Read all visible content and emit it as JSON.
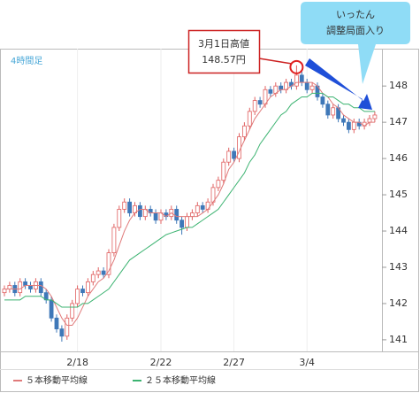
{
  "chart_data": {
    "type": "candlestick",
    "timeframe": "4時間足",
    "high_note": [
      "3月1日高値",
      "148.57円"
    ],
    "callout": [
      "いったん",
      "調整局面入り"
    ],
    "categories": [
      null,
      null,
      null,
      null,
      null,
      null,
      null,
      null,
      null,
      null,
      null,
      null,
      null,
      null,
      "2/18",
      null,
      null,
      null,
      null,
      null,
      null,
      null,
      null,
      null,
      null,
      null,
      null,
      null,
      null,
      null,
      "2/22",
      null,
      null,
      null,
      null,
      null,
      null,
      null,
      null,
      null,
      null,
      null,
      null,
      null,
      "2/27",
      null,
      null,
      null,
      null,
      null,
      null,
      null,
      null,
      null,
      null,
      null,
      null,
      null,
      "3/4",
      null,
      null,
      null,
      null,
      null,
      null,
      null,
      null,
      null,
      null,
      null,
      null,
      null
    ],
    "open": [
      142.3,
      142.4,
      142.5,
      142.3,
      142.6,
      142.5,
      142.4,
      142.6,
      142.3,
      142.1,
      141.6,
      141.3,
      141.1,
      141.6,
      142.0,
      142.4,
      142.3,
      142.6,
      142.8,
      142.9,
      142.8,
      143.4,
      144.1,
      144.6,
      144.8,
      144.5,
      144.7,
      144.4,
      144.6,
      144.5,
      144.3,
      144.5,
      144.4,
      144.6,
      144.3,
      144.1,
      144.4,
      144.5,
      144.7,
      144.6,
      144.8,
      145.2,
      145.4,
      145.9,
      146.2,
      146.0,
      146.6,
      146.9,
      147.3,
      147.6,
      147.5,
      147.9,
      147.8,
      148.0,
      147.9,
      148.1,
      148.0,
      148.3,
      148.1,
      147.9,
      148.0,
      147.7,
      147.5,
      147.2,
      147.4,
      147.1,
      147.0,
      146.8,
      147.0,
      146.9,
      147.0,
      147.1
    ],
    "high": [
      142.5,
      142.6,
      142.6,
      142.7,
      142.7,
      142.6,
      142.7,
      142.7,
      142.4,
      142.2,
      141.7,
      141.4,
      141.7,
      142.1,
      142.5,
      142.5,
      142.7,
      142.9,
      143.0,
      143.0,
      143.5,
      144.2,
      144.7,
      144.9,
      144.9,
      144.8,
      144.8,
      144.7,
      144.7,
      144.6,
      144.6,
      144.6,
      144.7,
      144.7,
      144.4,
      144.5,
      144.6,
      144.8,
      144.8,
      144.9,
      145.3,
      145.5,
      146.0,
      146.3,
      146.3,
      146.7,
      147.0,
      147.4,
      147.7,
      147.7,
      148.0,
      148.0,
      148.1,
      148.1,
      148.2,
      148.2,
      148.57,
      148.4,
      148.2,
      148.1,
      148.1,
      147.8,
      147.6,
      147.5,
      147.5,
      147.2,
      147.1,
      147.1,
      147.1,
      147.1,
      147.2,
      147.3
    ],
    "low": [
      142.2,
      142.3,
      142.2,
      142.2,
      142.4,
      142.3,
      142.3,
      142.2,
      142.0,
      141.5,
      141.2,
      140.95,
      141.0,
      141.5,
      141.9,
      142.2,
      142.2,
      142.5,
      142.7,
      142.7,
      142.7,
      143.3,
      144.0,
      144.5,
      144.4,
      144.4,
      144.3,
      144.3,
      144.4,
      144.2,
      144.2,
      144.3,
      144.3,
      144.2,
      143.9,
      144.0,
      144.3,
      144.4,
      144.5,
      144.5,
      144.7,
      145.1,
      145.3,
      145.8,
      145.9,
      145.9,
      146.5,
      146.8,
      147.2,
      147.4,
      147.4,
      147.7,
      147.7,
      147.8,
      147.8,
      147.9,
      147.9,
      148.0,
      147.8,
      147.8,
      147.6,
      147.4,
      147.1,
      147.1,
      147.0,
      146.9,
      146.7,
      146.7,
      146.8,
      146.8,
      146.9,
      147.0
    ],
    "close": [
      142.4,
      142.5,
      142.3,
      142.6,
      142.5,
      142.4,
      142.6,
      142.3,
      142.1,
      141.6,
      141.3,
      141.1,
      141.6,
      142.0,
      142.4,
      142.3,
      142.6,
      142.8,
      142.9,
      142.8,
      143.4,
      144.1,
      144.6,
      144.8,
      144.5,
      144.7,
      144.4,
      144.6,
      144.5,
      144.3,
      144.5,
      144.4,
      144.6,
      144.3,
      144.1,
      144.4,
      144.5,
      144.7,
      144.6,
      144.8,
      145.2,
      145.4,
      145.9,
      146.2,
      146.0,
      146.6,
      146.9,
      147.3,
      147.6,
      147.5,
      147.9,
      147.8,
      148.0,
      147.9,
      148.1,
      148.0,
      148.3,
      148.1,
      147.9,
      148.0,
      147.7,
      147.5,
      147.2,
      147.4,
      147.1,
      147.0,
      146.8,
      147.0,
      146.9,
      147.0,
      147.1,
      147.2
    ],
    "up_color": "#e06060",
    "down_color": "#3f78b8",
    "series": [
      {
        "name": "５本移動平均線",
        "color": "#e07a7a",
        "values": [
          142.4,
          142.4,
          142.4,
          142.4,
          142.5,
          142.5,
          142.5,
          142.5,
          142.4,
          142.2,
          141.9,
          141.6,
          141.4,
          141.4,
          141.6,
          141.9,
          142.2,
          142.4,
          142.6,
          142.7,
          142.9,
          143.2,
          143.6,
          144.0,
          144.3,
          144.5,
          144.6,
          144.6,
          144.5,
          144.5,
          144.5,
          144.4,
          144.5,
          144.4,
          144.4,
          144.4,
          144.4,
          144.4,
          144.5,
          144.6,
          144.8,
          145.0,
          145.3,
          145.7,
          145.9,
          146.2,
          146.5,
          146.8,
          147.1,
          147.3,
          147.5,
          147.7,
          147.8,
          147.9,
          147.9,
          148.0,
          148.1,
          148.1,
          148.1,
          148.1,
          148.0,
          147.8,
          147.7,
          147.5,
          147.4,
          147.2,
          147.1,
          147.0,
          147.0,
          146.9,
          147.0,
          147.0
        ]
      },
      {
        "name": "２５本移動平均線",
        "color": "#3cb371",
        "values": [
          142.1,
          142.1,
          142.1,
          142.1,
          142.2,
          142.2,
          142.2,
          142.2,
          142.1,
          142.1,
          142.0,
          141.9,
          141.9,
          141.9,
          141.9,
          142.0,
          142.0,
          142.1,
          142.2,
          142.3,
          142.4,
          142.6,
          142.8,
          143.0,
          143.2,
          143.3,
          143.4,
          143.5,
          143.6,
          143.7,
          143.8,
          143.9,
          143.95,
          144.0,
          144.05,
          144.1,
          144.1,
          144.2,
          144.3,
          144.4,
          144.5,
          144.6,
          144.8,
          145.0,
          145.2,
          145.4,
          145.6,
          145.9,
          146.1,
          146.4,
          146.6,
          146.8,
          147.0,
          147.2,
          147.3,
          147.5,
          147.6,
          147.7,
          147.7,
          147.8,
          147.8,
          147.8,
          147.7,
          147.7,
          147.6,
          147.5,
          147.5,
          147.4,
          147.4,
          147.3,
          147.3,
          147.3
        ]
      }
    ],
    "ylim": [
      140.68,
      149.03
    ],
    "yticks": [
      141,
      142,
      143,
      144,
      145,
      146,
      147,
      148
    ]
  }
}
